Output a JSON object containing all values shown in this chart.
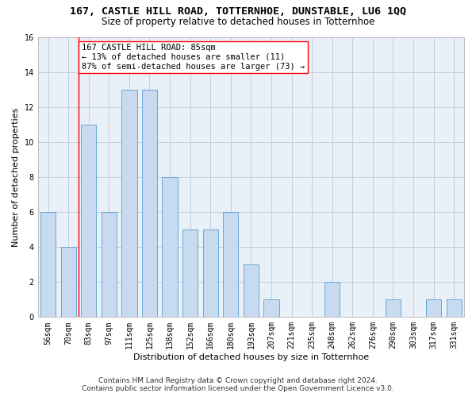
{
  "title": "167, CASTLE HILL ROAD, TOTTERNHOE, DUNSTABLE, LU6 1QQ",
  "subtitle": "Size of property relative to detached houses in Totternhoe",
  "xlabel": "Distribution of detached houses by size in Totternhoe",
  "ylabel": "Number of detached properties",
  "categories": [
    "56sqm",
    "70sqm",
    "83sqm",
    "97sqm",
    "111sqm",
    "125sqm",
    "138sqm",
    "152sqm",
    "166sqm",
    "180sqm",
    "193sqm",
    "207sqm",
    "221sqm",
    "235sqm",
    "248sqm",
    "262sqm",
    "276sqm",
    "290sqm",
    "303sqm",
    "317sqm",
    "331sqm"
  ],
  "values": [
    6,
    4,
    11,
    6,
    13,
    13,
    8,
    5,
    5,
    6,
    3,
    1,
    0,
    0,
    2,
    0,
    0,
    1,
    0,
    1,
    1
  ],
  "bar_color": "#c8daf0",
  "bar_edge_color": "#5a9fd4",
  "grid_color": "#c0c8d8",
  "background_color": "#eaf0f8",
  "property_label": "167 CASTLE HILL ROAD: 85sqm",
  "annotation_line1": "← 13% of detached houses are smaller (11)",
  "annotation_line2": "87% of semi-detached houses are larger (73) →",
  "vline_x_index": 1.5,
  "ylim": [
    0,
    16
  ],
  "yticks": [
    0,
    2,
    4,
    6,
    8,
    10,
    12,
    14,
    16
  ],
  "footnote1": "Contains HM Land Registry data © Crown copyright and database right 2024.",
  "footnote2": "Contains public sector information licensed under the Open Government Licence v3.0.",
  "title_fontsize": 9.5,
  "subtitle_fontsize": 8.5,
  "xlabel_fontsize": 8,
  "ylabel_fontsize": 8,
  "tick_fontsize": 7,
  "annotation_fontsize": 7.5,
  "footnote_fontsize": 6.5,
  "bar_width": 0.75
}
